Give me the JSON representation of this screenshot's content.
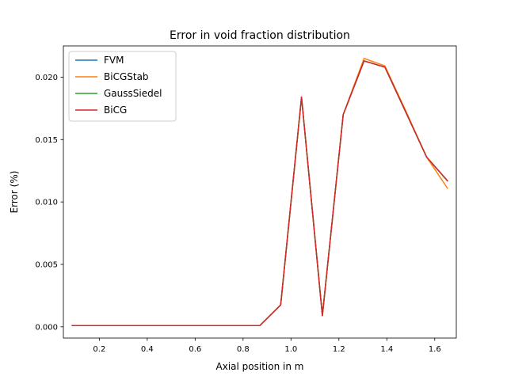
{
  "chart_data": {
    "type": "line",
    "title": "Error in void fraction distribution",
    "xlabel": "Axial position in m",
    "ylabel": "Error (%)",
    "xlim": [
      0.05,
      1.69
    ],
    "ylim": [
      -0.0009,
      0.0225
    ],
    "xticks": [
      0.2,
      0.4,
      0.6,
      0.8,
      1.0,
      1.2,
      1.4,
      1.6
    ],
    "xtick_labels": [
      "0.2",
      "0.4",
      "0.6",
      "0.8",
      "1.0",
      "1.2",
      "1.4",
      "1.6"
    ],
    "yticks": [
      0.0,
      0.005,
      0.01,
      0.015,
      0.02
    ],
    "ytick_labels": [
      "0.000",
      "0.005",
      "0.010",
      "0.015",
      "0.020"
    ],
    "grid": false,
    "legend_position": "top-left",
    "x": [
      0.087,
      0.174,
      0.261,
      0.348,
      0.435,
      0.522,
      0.609,
      0.696,
      0.783,
      0.87,
      0.957,
      1.044,
      1.131,
      1.218,
      1.305,
      1.392,
      1.479,
      1.566,
      1.653
    ],
    "series": [
      {
        "name": "FVM",
        "color": "#1f77b4",
        "values": [
          0.0001,
          0.0001,
          0.0001,
          0.0001,
          0.0001,
          0.0001,
          0.0001,
          0.0001,
          0.0001,
          0.0001,
          0.00175,
          0.0184,
          0.0009,
          0.017,
          0.0213,
          0.0208,
          0.0172,
          0.0136,
          0.0117
        ]
      },
      {
        "name": "BiCGStab",
        "color": "#ff7f0e",
        "values": [
          0.0001,
          0.0001,
          0.0001,
          0.0001,
          0.0001,
          0.0001,
          0.0001,
          0.0001,
          0.0001,
          0.0001,
          0.00175,
          0.0184,
          0.0009,
          0.017,
          0.0215,
          0.0209,
          0.0173,
          0.0136,
          0.0111
        ]
      },
      {
        "name": "GaussSiedel",
        "color": "#2ca02c",
        "values": [
          0.0001,
          0.0001,
          0.0001,
          0.0001,
          0.0001,
          0.0001,
          0.0001,
          0.0001,
          0.0001,
          0.0001,
          0.00175,
          0.0184,
          0.0009,
          0.017,
          0.0213,
          0.0208,
          0.0172,
          0.0136,
          0.0117
        ]
      },
      {
        "name": "BiCG",
        "color": "#d62728",
        "values": [
          0.0001,
          0.0001,
          0.0001,
          0.0001,
          0.0001,
          0.0001,
          0.0001,
          0.0001,
          0.0001,
          0.0001,
          0.00175,
          0.0184,
          0.0009,
          0.017,
          0.0213,
          0.0208,
          0.0172,
          0.0136,
          0.0117
        ]
      }
    ]
  }
}
